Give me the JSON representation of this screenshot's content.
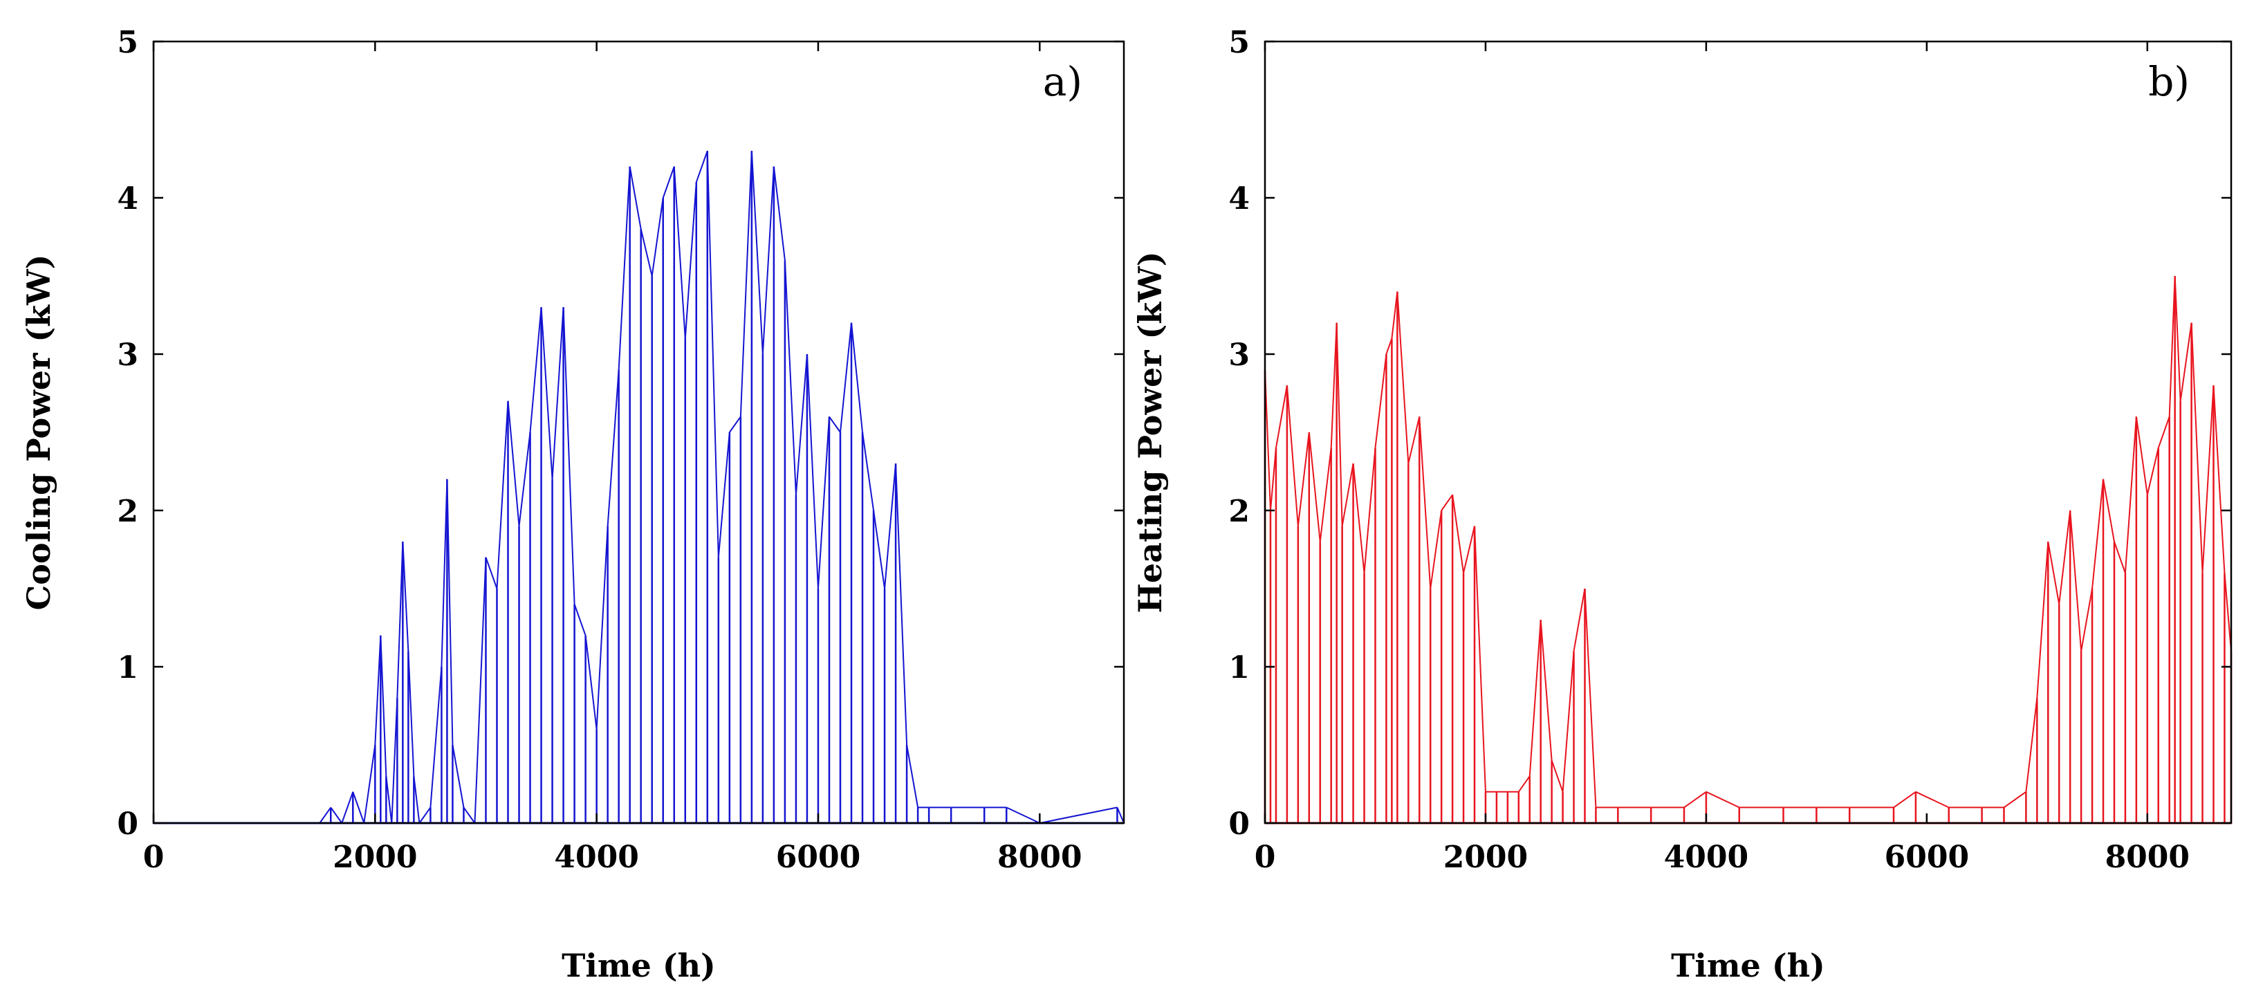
{
  "chart_data": [
    {
      "type": "line",
      "panel_label": "a)",
      "xlabel": "Time (h)",
      "ylabel": "Cooling Power (kW)",
      "xlim": [
        0,
        8760
      ],
      "ylim": [
        0,
        5
      ],
      "xticks": [
        0,
        2000,
        4000,
        6000,
        8000
      ],
      "yticks": [
        0,
        1,
        2,
        3,
        4,
        5
      ],
      "xtick_labels": [
        "0",
        "2000",
        "4000",
        "6000",
        "8000"
      ],
      "ytick_labels": [
        "0",
        "1",
        "2",
        "3",
        "4",
        "5"
      ],
      "series": [
        {
          "name": "Cooling power",
          "color": "#1414d2",
          "x": [
            0,
            1500,
            1600,
            1700,
            1800,
            1900,
            2000,
            2050,
            2100,
            2150,
            2200,
            2250,
            2300,
            2350,
            2400,
            2500,
            2600,
            2650,
            2700,
            2800,
            2900,
            3000,
            3100,
            3200,
            3300,
            3400,
            3500,
            3600,
            3700,
            3800,
            3900,
            4000,
            4100,
            4200,
            4300,
            4400,
            4500,
            4600,
            4700,
            4800,
            4900,
            5000,
            5100,
            5200,
            5300,
            5400,
            5500,
            5600,
            5700,
            5800,
            5900,
            6000,
            6100,
            6200,
            6300,
            6400,
            6500,
            6600,
            6700,
            6800,
            6900,
            7000,
            7200,
            7500,
            7700,
            8000,
            8700,
            8760
          ],
          "values": [
            0,
            0,
            0.1,
            0,
            0.2,
            0,
            0.5,
            1.2,
            0.3,
            0,
            0.8,
            1.8,
            1.1,
            0.3,
            0,
            0.1,
            1.0,
            2.2,
            0.5,
            0.1,
            0,
            1.7,
            1.5,
            2.7,
            1.9,
            2.5,
            3.3,
            2.2,
            3.3,
            1.4,
            1.2,
            0.6,
            1.9,
            2.9,
            4.2,
            3.8,
            3.5,
            4.0,
            4.2,
            3.1,
            4.1,
            4.3,
            1.7,
            2.5,
            2.6,
            4.3,
            3.0,
            4.2,
            3.6,
            2.1,
            3.0,
            1.5,
            2.6,
            2.5,
            3.2,
            2.5,
            2.0,
            1.5,
            2.3,
            0.5,
            0.1,
            0.1,
            0.1,
            0.1,
            0.1,
            0,
            0.1,
            0
          ]
        }
      ]
    },
    {
      "type": "line",
      "panel_label": "b)",
      "xlabel": "Time (h)",
      "ylabel": "Heating Power (kW)",
      "xlim": [
        0,
        8760
      ],
      "ylim": [
        0,
        5
      ],
      "xticks": [
        0,
        2000,
        4000,
        6000,
        8000
      ],
      "yticks": [
        0,
        1,
        2,
        3,
        4,
        5
      ],
      "xtick_labels": [
        "0",
        "2000",
        "4000",
        "6000",
        "8000"
      ],
      "ytick_labels": [
        "0",
        "1",
        "2",
        "3",
        "4",
        "5"
      ],
      "series": [
        {
          "name": "Heating power",
          "color": "#e8141e",
          "x": [
            0,
            50,
            100,
            200,
            300,
            400,
            500,
            600,
            650,
            700,
            800,
            900,
            1000,
            1100,
            1150,
            1200,
            1300,
            1400,
            1500,
            1600,
            1700,
            1800,
            1900,
            2000,
            2100,
            2200,
            2300,
            2400,
            2500,
            2600,
            2700,
            2800,
            2900,
            3000,
            3200,
            3500,
            3800,
            4000,
            4300,
            4700,
            5000,
            5300,
            5700,
            5900,
            6200,
            6500,
            6700,
            6900,
            7000,
            7100,
            7200,
            7300,
            7400,
            7500,
            7600,
            7700,
            7800,
            7900,
            8000,
            8100,
            8200,
            8250,
            8300,
            8400,
            8500,
            8600,
            8700,
            8760
          ],
          "values": [
            2.9,
            2.0,
            2.4,
            2.8,
            1.9,
            2.5,
            1.8,
            2.4,
            3.2,
            1.9,
            2.3,
            1.6,
            2.4,
            3.0,
            3.1,
            3.4,
            2.3,
            2.6,
            1.5,
            2.0,
            2.1,
            1.6,
            1.9,
            0.2,
            0.2,
            0.2,
            0.2,
            0.3,
            1.3,
            0.4,
            0.2,
            1.1,
            1.5,
            0.1,
            0.1,
            0.1,
            0.1,
            0.2,
            0.1,
            0.1,
            0.1,
            0.1,
            0.1,
            0.2,
            0.1,
            0.1,
            0.1,
            0.2,
            0.8,
            1.8,
            1.4,
            2.0,
            1.1,
            1.5,
            2.2,
            1.8,
            1.6,
            2.6,
            2.1,
            2.4,
            2.6,
            3.5,
            2.7,
            3.2,
            1.6,
            2.8,
            1.6,
            1.1
          ]
        }
      ]
    }
  ]
}
